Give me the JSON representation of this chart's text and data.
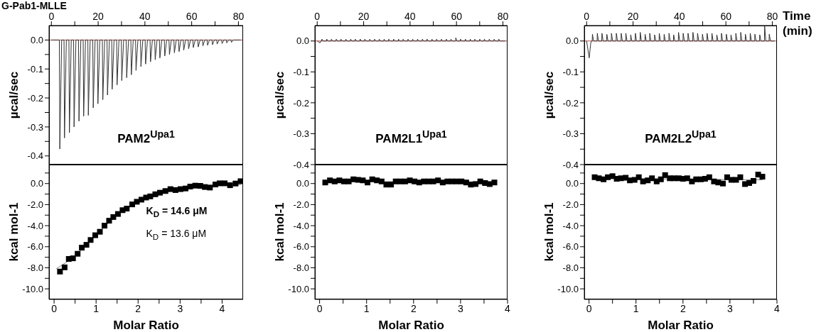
{
  "chart_data": [
    {
      "type": "line",
      "title": "G-Pab1-MLLE",
      "ylabel": "µcal/sec",
      "annotations": [
        "PAM2$^{Upa1}$"
      ],
      "xlim": [
        -1,
        82
      ],
      "xticks": [
        0,
        {
          "value": 10,
          "label": null
        },
        20,
        {
          "value": 30,
          "label": null
        },
        40,
        {
          "value": 50,
          "label": null
        },
        60,
        {
          "value": 70,
          "label": null
        },
        80
      ],
      "ylim": [
        -0.43,
        0.05
      ],
      "yticks": [
        {
          "value": 0,
          "label": "0.0"
        },
        {
          "value": -0.05,
          "label": null
        },
        {
          "value": -0.1,
          "label": "-0.1"
        },
        {
          "value": -0.15,
          "label": null
        },
        {
          "value": -0.2,
          "label": "-0.2"
        },
        {
          "value": -0.25,
          "label": null
        },
        {
          "value": -0.3,
          "label": "-0.3"
        },
        {
          "value": -0.35,
          "label": null
        },
        {
          "value": -0.4,
          "label": "-0.4"
        }
      ],
      "ref_lines": [
        {
          "axis": "y",
          "value": 0,
          "color": "#c0504d"
        }
      ],
      "series": [
        {
          "color": "#333333",
          "x": [
            0,
            3.4,
            3.6,
            4.4,
            5.4,
            5.6,
            6.4,
            7.5,
            7.7,
            8.5,
            9.5,
            9.7,
            10.5,
            11.6,
            11.8,
            12.6,
            13.6,
            13.8,
            14.6,
            15.6,
            15.8,
            16.6,
            17.7,
            17.9,
            18.7,
            19.7,
            19.9,
            20.7,
            21.8,
            22.0,
            22.8,
            23.8,
            24.0,
            24.8,
            25.8,
            26.0,
            26.8,
            27.9,
            28.1,
            28.9,
            29.9,
            30.1,
            30.9,
            32.0,
            32.2,
            33.0,
            34.0,
            34.2,
            35.0,
            36.0,
            36.2,
            37.0,
            38.1,
            38.3,
            39.1,
            40.1,
            40.3,
            41.1,
            42.2,
            42.4,
            43.2,
            44.2,
            44.4,
            45.2,
            46.2,
            46.4,
            47.2,
            48.3,
            48.5,
            49.3,
            50.3,
            50.5,
            51.3,
            52.4,
            52.6,
            53.4,
            54.4,
            54.6,
            55.4,
            56.4,
            56.6,
            57.4,
            58.5,
            58.7,
            59.5,
            60.5,
            60.7,
            61.5,
            62.6,
            62.8,
            63.6,
            64.6,
            64.8,
            65.6,
            66.6,
            66.8,
            67.6,
            68.7,
            68.9,
            69.7,
            70.7,
            70.9,
            71.7,
            72.8,
            73.0,
            73.8,
            74.8,
            75.0,
            75.8,
            76.8,
            77.0,
            77.8,
            81
          ],
          "values": [
            0,
            0,
            -0.376,
            0,
            0,
            -0.338,
            0,
            0,
            -0.32,
            0,
            0,
            -0.3,
            0,
            0,
            -0.28,
            0,
            0,
            -0.263,
            0,
            0,
            -0.26,
            0,
            0,
            -0.234,
            0,
            0,
            -0.22,
            0,
            0,
            -0.206,
            0,
            0,
            -0.19,
            0,
            0,
            -0.17,
            0,
            0,
            -0.155,
            0,
            0,
            -0.14,
            0,
            0,
            -0.13,
            0,
            0,
            -0.12,
            0,
            0,
            -0.105,
            0,
            0,
            -0.092,
            0,
            0,
            -0.083,
            0,
            0,
            -0.075,
            0,
            0,
            -0.068,
            0,
            0,
            -0.062,
            0,
            0,
            -0.055,
            0,
            0,
            -0.05,
            0,
            0,
            -0.044,
            0,
            0,
            -0.04,
            0,
            0,
            -0.035,
            0,
            0,
            -0.03,
            0,
            0,
            -0.026,
            0,
            0,
            -0.024,
            0,
            0,
            -0.02,
            0,
            0,
            -0.018,
            0,
            0,
            -0.016,
            0,
            0,
            -0.014,
            0,
            0,
            -0.012,
            0,
            0,
            -0.01,
            0,
            0,
            -0.008,
            0,
            0
          ]
        }
      ]
    },
    {
      "type": "line",
      "ylabel": "µcal/sec",
      "annotations": [
        "PAM2L1$^{Upa1}$"
      ],
      "xlim": [
        -1,
        82
      ],
      "xticks": [
        0,
        {
          "value": 10,
          "label": null
        },
        20,
        {
          "value": 30,
          "label": null
        },
        40,
        {
          "value": 50,
          "label": null
        },
        60,
        {
          "value": 70,
          "label": null
        },
        80
      ],
      "ylim": [
        -0.4,
        0.05
      ],
      "yticks": [
        {
          "value": 0,
          "label": "0.0"
        },
        {
          "value": -0.05,
          "label": null
        },
        {
          "value": -0.1,
          "label": "-0.1"
        },
        {
          "value": -0.15,
          "label": null
        },
        {
          "value": -0.2,
          "label": "-0.2"
        },
        {
          "value": -0.25,
          "label": null
        },
        {
          "value": -0.3,
          "label": "-0.3"
        },
        {
          "value": -0.35,
          "label": null
        },
        {
          "value": -0.4,
          "label": "-0.4"
        }
      ],
      "ref_lines": [
        {
          "axis": "y",
          "value": 0,
          "color": "#c0504d"
        }
      ],
      "series": [
        {
          "color": "#333333",
          "x": [
            0,
            1.2,
            1.6,
            1.9,
            2.0,
            2.5,
            4.0,
            4.1,
            4.6,
            6.0,
            6.1,
            6.6,
            8.1,
            8.2,
            8.7,
            10.1,
            10.2,
            10.7,
            12.2,
            12.3,
            12.8,
            14.3,
            14.4,
            14.9,
            16.3,
            16.4,
            16.9,
            18.4,
            18.5,
            19.0,
            20.4,
            20.5,
            21.0,
            22.5,
            22.6,
            23.1,
            24.6,
            24.7,
            25.2,
            26.6,
            26.7,
            27.2,
            28.7,
            28.8,
            29.3,
            30.7,
            30.8,
            31.3,
            32.8,
            32.9,
            33.4,
            34.9,
            35.0,
            35.5,
            36.9,
            37.0,
            37.5,
            39.0,
            39.1,
            39.6,
            41.0,
            41.1,
            41.6,
            43.1,
            43.2,
            43.7,
            45.2,
            45.3,
            45.8,
            47.2,
            47.3,
            47.8,
            49.3,
            49.4,
            49.9,
            51.3,
            51.4,
            51.9,
            53.4,
            53.5,
            54.0,
            55.5,
            55.6,
            56.1,
            57.5,
            57.6,
            58.1,
            59.6,
            59.7,
            60.2,
            61.6,
            61.7,
            62.2,
            63.7,
            63.8,
            64.3,
            65.8,
            65.9,
            66.4,
            67.8,
            67.9,
            68.4,
            69.9,
            70.0,
            70.5,
            71.9,
            72.0,
            72.5,
            74.0,
            74.1,
            74.6,
            76.1,
            76.2,
            76.7,
            78.1,
            78.2,
            78.7,
            81
          ],
          "values": [
            0,
            -0.006,
            0,
            0,
            0.006,
            0,
            0,
            0.006,
            0,
            0,
            0.006,
            0,
            0,
            0.006,
            0,
            0,
            0.006,
            0,
            0,
            0.006,
            0,
            0,
            0.006,
            0,
            0,
            0.006,
            0,
            0,
            0.006,
            0,
            0,
            0.006,
            0,
            0,
            0.006,
            0,
            0,
            0.006,
            0,
            0,
            0.006,
            0,
            0,
            0.006,
            0,
            0,
            0.006,
            0,
            0,
            0.006,
            0,
            0,
            0.006,
            0,
            0,
            0.006,
            0,
            0,
            0.006,
            0,
            0,
            0.006,
            0,
            0,
            0.006,
            0,
            0,
            0.006,
            0,
            0,
            0.006,
            0,
            0,
            0.006,
            0,
            0,
            0.006,
            0,
            0,
            0.006,
            0,
            0,
            0.006,
            0,
            0,
            0.006,
            0,
            0,
            0.01,
            0,
            0,
            0.006,
            0,
            0,
            0.006,
            0,
            0,
            0.006,
            0,
            0,
            0.006,
            0,
            0,
            0.006,
            0,
            0,
            0.006,
            0,
            0,
            0.006,
            0,
            0,
            0.006,
            0,
            0,
            0.006,
            0,
            0
          ]
        }
      ]
    },
    {
      "type": "line",
      "xlabel": "Time (min)",
      "ylabel": "µcal/sec",
      "annotations": [
        "PAM2L2$^{Upa1}$"
      ],
      "xlim": [
        -1,
        82
      ],
      "xticks": [
        0,
        {
          "value": 10,
          "label": null
        },
        20,
        {
          "value": 30,
          "label": null
        },
        40,
        {
          "value": 50,
          "label": null
        },
        60,
        {
          "value": 70,
          "label": null
        },
        80
      ],
      "ylim": [
        -0.4,
        0.05
      ],
      "yticks": [
        {
          "value": 0,
          "label": "0.0"
        },
        {
          "value": -0.05,
          "label": null
        },
        {
          "value": -0.1,
          "label": "-0.1"
        },
        {
          "value": -0.15,
          "label": null
        },
        {
          "value": -0.2,
          "label": "-0.2"
        },
        {
          "value": -0.25,
          "label": null
        },
        {
          "value": -0.3,
          "label": "-0.3"
        },
        {
          "value": -0.35,
          "label": null
        },
        {
          "value": -0.4,
          "label": "-0.4"
        }
      ],
      "ref_lines": [
        {
          "axis": "y",
          "value": 0,
          "color": "#c0504d"
        }
      ],
      "series": [
        {
          "color": "#333333",
          "x": [
            0,
            1.1,
            1.8,
            2.2,
            2.4,
            2.5,
            3.0,
            4.5,
            4.6,
            5.1,
            6.5,
            6.6,
            7.1,
            8.6,
            8.7,
            9.2,
            10.6,
            10.7,
            11.2,
            12.7,
            12.8,
            13.3,
            14.8,
            14.9,
            15.4,
            16.8,
            16.9,
            17.4,
            18.9,
            19.0,
            19.5,
            20.9,
            21.0,
            21.5,
            23.0,
            23.1,
            23.6,
            25.1,
            25.2,
            25.7,
            27.1,
            27.2,
            27.7,
            29.2,
            29.3,
            29.8,
            31.2,
            31.3,
            31.8,
            33.3,
            33.4,
            33.9,
            35.4,
            35.5,
            36.0,
            37.4,
            37.5,
            38.0,
            39.5,
            39.6,
            40.1,
            41.5,
            41.6,
            42.1,
            43.6,
            43.7,
            44.2,
            45.7,
            45.8,
            46.3,
            47.7,
            47.8,
            48.3,
            49.8,
            49.9,
            50.4,
            51.8,
            51.9,
            52.4,
            53.9,
            54.0,
            54.5,
            56.0,
            56.1,
            56.6,
            58.0,
            58.1,
            58.6,
            60.1,
            60.2,
            60.7,
            62.1,
            62.2,
            62.7,
            64.2,
            64.3,
            64.8,
            66.3,
            66.4,
            66.9,
            68.3,
            68.4,
            68.9,
            70.4,
            70.5,
            71.0,
            72.4,
            72.5,
            73.0,
            74.5,
            74.6,
            75.1,
            76.6,
            76.7,
            77.2,
            78.6,
            78.7,
            79.2,
            81
          ],
          "values": [
            0,
            -0.055,
            -0.005,
            0,
            0,
            0.022,
            0,
            0,
            0.025,
            0,
            0,
            0.025,
            0,
            0,
            0.022,
            0,
            0,
            0.025,
            0,
            0,
            0.025,
            0,
            0,
            0.025,
            0,
            0,
            0.025,
            0,
            0,
            0.02,
            0,
            0,
            0.025,
            0,
            0,
            0.028,
            0,
            0,
            0.022,
            0,
            0,
            0.025,
            0,
            0,
            0.02,
            0,
            0,
            0.025,
            0,
            0,
            0.022,
            0,
            0,
            0.025,
            0,
            0,
            0.02,
            0,
            0,
            0.028,
            0,
            0,
            0.025,
            0,
            0,
            0.025,
            0,
            0,
            0.028,
            0,
            0,
            0.025,
            0,
            0,
            0.022,
            0,
            0,
            0.025,
            0,
            0,
            0.025,
            0,
            0,
            0.02,
            0,
            0,
            0.025,
            0,
            0,
            0.022,
            0,
            0,
            0.02,
            0,
            0,
            0.025,
            0,
            0,
            0.028,
            0,
            0,
            0.022,
            0,
            0,
            0.025,
            0,
            0,
            0.022,
            0,
            0,
            0.02,
            0,
            0,
            0.048,
            0,
            0,
            0.022,
            0,
            0
          ]
        }
      ]
    },
    {
      "type": "scatter",
      "xlabel": "Molar Ratio",
      "ylabel": "kcal mol-1",
      "marker": "square",
      "annotations": [
        "K$_{D}$ =  14.6 μM",
        "K$_{D}$ =  13.6 μM"
      ],
      "xlim": [
        -0.12,
        4.5
      ],
      "xticks": [
        0,
        {
          "value": 0.5,
          "label": null
        },
        1,
        {
          "value": 1.5,
          "label": null
        },
        2,
        {
          "value": 2.5,
          "label": null
        },
        3,
        {
          "value": 3.5,
          "label": null
        },
        4
      ],
      "ylim": [
        -11,
        1.8
      ],
      "yticks": [
        {
          "value": 1,
          "label": null
        },
        {
          "value": 0,
          "label": "0.0"
        },
        {
          "value": -1,
          "label": null
        },
        {
          "value": -2,
          "label": "-2.0"
        },
        {
          "value": -3,
          "label": null
        },
        {
          "value": -4,
          "label": "-4.0"
        },
        {
          "value": -5,
          "label": null
        },
        {
          "value": -6,
          "label": "-6.0"
        },
        {
          "value": -7,
          "label": null
        },
        {
          "value": -8,
          "label": "-8.0"
        },
        {
          "value": -9,
          "label": null
        },
        {
          "value": -10,
          "label": "-10.0"
        }
      ],
      "series": [
        {
          "color": "#000000",
          "x": [
            0.14,
            0.25,
            0.35,
            0.45,
            0.56,
            0.66,
            0.77,
            0.87,
            0.98,
            1.09,
            1.2,
            1.31,
            1.41,
            1.52,
            1.63,
            1.73,
            1.86,
            1.97,
            2.08,
            2.19,
            2.29,
            2.41,
            2.52,
            2.65,
            2.77,
            2.89,
            3.01,
            3.13,
            3.24,
            3.36,
            3.48,
            3.59,
            3.71,
            3.84,
            3.94,
            4.06,
            4.19,
            4.32,
            4.44
          ],
          "values": [
            -8.36,
            -7.96,
            -7.16,
            -7.1,
            -6.67,
            -6.09,
            -5.82,
            -5.36,
            -4.91,
            -4.58,
            -4.0,
            -3.53,
            -3.18,
            -2.89,
            -2.53,
            -2.38,
            -1.98,
            -1.73,
            -1.53,
            -1.33,
            -1.22,
            -1.02,
            -0.87,
            -0.71,
            -0.53,
            -0.62,
            -0.53,
            -0.47,
            -0.29,
            -0.2,
            -0.22,
            -0.33,
            -0.38,
            -0.09,
            0.02,
            0.02,
            -0.16,
            0,
            0.22
          ]
        },
        {
          "type": "line",
          "marker": "none",
          "color": "#808080",
          "x": [
            0.05,
            0.5,
            1.0,
            1.5,
            2.0,
            2.5,
            3.0,
            3.5,
            4.0,
            4.45
          ],
          "values": [
            -8.1,
            -6.95,
            -4.9,
            -2.95,
            -1.7,
            -0.95,
            -0.55,
            -0.3,
            -0.15,
            -0.1
          ]
        }
      ]
    },
    {
      "type": "scatter",
      "xlabel": "Molar Ratio",
      "ylabel": "kcal mol-1",
      "marker": "square",
      "xlim": [
        -0.1,
        4
      ],
      "xticks": [
        0,
        {
          "value": 0.5,
          "label": null
        },
        1,
        {
          "value": 1.5,
          "label": null
        },
        2,
        {
          "value": 2.5,
          "label": null
        },
        3,
        {
          "value": 3.5,
          "label": null
        },
        4
      ],
      "ylim": [
        -11,
        1.8
      ],
      "yticks": [
        {
          "value": 1,
          "label": null
        },
        {
          "value": 0,
          "label": "0.0"
        },
        {
          "value": -1,
          "label": null
        },
        {
          "value": -2,
          "label": "-2.0"
        },
        {
          "value": -3,
          "label": null
        },
        {
          "value": -4,
          "label": "-4.0"
        },
        {
          "value": -5,
          "label": null
        },
        {
          "value": -6,
          "label": "-6.0"
        },
        {
          "value": -7,
          "label": null
        },
        {
          "value": -8,
          "label": "-8.0"
        },
        {
          "value": -9,
          "label": null
        },
        {
          "value": -10,
          "label": "-10.0"
        }
      ],
      "series": [
        {
          "color": "#000000",
          "x": [
            0.12,
            0.22,
            0.32,
            0.42,
            0.52,
            0.62,
            0.72,
            0.82,
            0.92,
            1.02,
            1.12,
            1.22,
            1.32,
            1.42,
            1.52,
            1.62,
            1.72,
            1.82,
            1.92,
            2.02,
            2.12,
            2.22,
            2.32,
            2.42,
            2.52,
            2.62,
            2.72,
            2.82,
            2.92,
            3.02,
            3.12,
            3.22,
            3.32,
            3.42,
            3.52,
            3.62,
            3.72
          ],
          "values": [
            0.1,
            0.3,
            0.2,
            0.3,
            0.2,
            0.2,
            0.4,
            0.35,
            0.3,
            0.1,
            0.4,
            0.3,
            0.2,
            -0.1,
            -0.1,
            0.2,
            0.2,
            0.2,
            0.3,
            0.2,
            0.1,
            0.2,
            0.2,
            0.2,
            0.3,
            0.1,
            0.2,
            0.2,
            0.2,
            0.2,
            0.1,
            -0.1,
            -0.05,
            0.2,
            0.05,
            -0.05,
            0.1
          ]
        },
        {
          "type": "line",
          "marker": "none",
          "color": "#808080",
          "x": [
            0.12,
            3.72
          ],
          "values": [
            0.2,
            0.15
          ]
        }
      ]
    },
    {
      "type": "scatter",
      "xlabel": "Molar Ratio",
      "ylabel": "kcal mol-1",
      "marker": "square",
      "xlim": [
        -0.1,
        4
      ],
      "xticks": [
        0,
        {
          "value": 0.5,
          "label": null
        },
        1,
        {
          "value": 1.5,
          "label": null
        },
        2,
        {
          "value": 2.5,
          "label": null
        },
        3,
        {
          "value": 3.5,
          "label": null
        },
        4
      ],
      "ylim": [
        -11,
        1.8
      ],
      "yticks": [
        {
          "value": 1,
          "label": null
        },
        {
          "value": 0,
          "label": "0.0"
        },
        {
          "value": -1,
          "label": null
        },
        {
          "value": -2,
          "label": "-2.0"
        },
        {
          "value": -3,
          "label": null
        },
        {
          "value": -4,
          "label": "-4.0"
        },
        {
          "value": -5,
          "label": null
        },
        {
          "value": -6,
          "label": "-6.0"
        },
        {
          "value": -7,
          "label": null
        },
        {
          "value": -8,
          "label": "-8.0"
        },
        {
          "value": -9,
          "label": null
        },
        {
          "value": -10,
          "label": "-10.0"
        }
      ],
      "series": [
        {
          "color": "#000000",
          "x": [
            0.12,
            0.21,
            0.31,
            0.4,
            0.5,
            0.59,
            0.68,
            0.78,
            0.87,
            0.97,
            1.06,
            1.15,
            1.25,
            1.34,
            1.44,
            1.53,
            1.62,
            1.72,
            1.81,
            1.91,
            2.0,
            2.09,
            2.19,
            2.28,
            2.38,
            2.47,
            2.56,
            2.66,
            2.75,
            2.85,
            2.94,
            3.03,
            3.13,
            3.22,
            3.32,
            3.41,
            3.5,
            3.6,
            3.69
          ],
          "values": [
            0.6,
            0.5,
            0.4,
            0.6,
            0.7,
            0.45,
            0.5,
            0.55,
            0.3,
            0.35,
            0.6,
            0.2,
            0.3,
            0.5,
            0.2,
            0.4,
            0.8,
            0.5,
            0.5,
            0.5,
            0.45,
            0.5,
            0.2,
            0.4,
            0.4,
            0.45,
            0.6,
            0.2,
            0.1,
            0.0,
            0.6,
            0.35,
            0.35,
            0.6,
            -0.05,
            0.05,
            0.25,
            0.85,
            0.65
          ]
        },
        {
          "type": "line",
          "marker": "none",
          "color": "#808080",
          "x": [
            0.12,
            3.69
          ],
          "values": [
            0.5,
            0.35
          ]
        }
      ]
    }
  ]
}
